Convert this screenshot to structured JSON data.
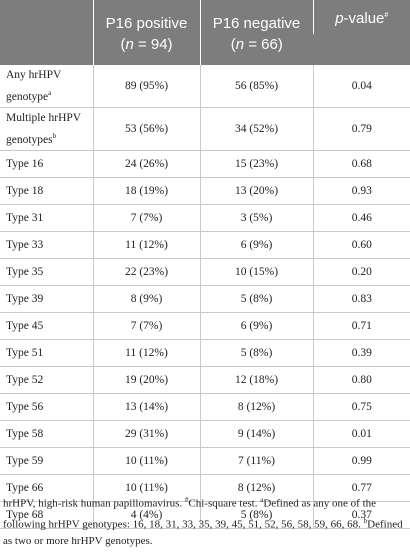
{
  "table": {
    "headers": {
      "col2": "P16 positive",
      "col3": "P16 negative",
      "col4_p": "p",
      "col4_rest": "-value",
      "col4_sup": "#",
      "n2_prefix": "(",
      "n2_n": "n",
      "n2_rest": " = 94)",
      "n3_prefix": "(",
      "n3_n": "n",
      "n3_rest": " = 66)"
    },
    "rows": [
      {
        "label_line1": "Any hrHPV",
        "label_line2": "genotype",
        "sup": "a",
        "pos": "89 (95%)",
        "neg": "56 (85%)",
        "p": "0.04"
      },
      {
        "label_line1": "Multiple hrHPV",
        "label_line2": "genotypes",
        "sup": "b",
        "pos": "53 (56%)",
        "neg": "34 (52%)",
        "p": "0.79"
      },
      {
        "label": "Type 16",
        "pos": "24 (26%)",
        "neg": "15 (23%)",
        "p": "0.68"
      },
      {
        "label": "Type 18",
        "pos": "18 (19%)",
        "neg": "13 (20%)",
        "p": "0.93"
      },
      {
        "label": "Type 31",
        "pos": "7 (7%)",
        "neg": "3 (5%)",
        "p": "0.46"
      },
      {
        "label": "Type 33",
        "pos": "11 (12%)",
        "neg": "6 (9%)",
        "p": "0.60"
      },
      {
        "label": "Type 35",
        "pos": "22 (23%)",
        "neg": "10 (15%)",
        "p": "0.20"
      },
      {
        "label": "Type 39",
        "pos": "8 (9%)",
        "neg": "5 (8%)",
        "p": "0.83"
      },
      {
        "label": "Type 45",
        "pos": "7 (7%)",
        "neg": "6 (9%)",
        "p": "0.71"
      },
      {
        "label": "Type 51",
        "pos": "11 (12%)",
        "neg": "5 (8%)",
        "p": "0.39"
      },
      {
        "label": "Type 52",
        "pos": "19 (20%)",
        "neg": "12 (18%)",
        "p": "0.80"
      },
      {
        "label": "Type 56",
        "pos": "13 (14%)",
        "neg": "8 (12%)",
        "p": "0.75"
      },
      {
        "label": "Type 58",
        "pos": "29 (31%)",
        "neg": "9 (14%)",
        "p": "0.01"
      },
      {
        "label": "Type 59",
        "pos": "10 (11%)",
        "neg": "7 (11%)",
        "p": "0.99"
      },
      {
        "label": "Type 66",
        "pos": "10 (11%)",
        "neg": "8 (12%)",
        "p": "0.77"
      },
      {
        "label": "Type 68",
        "pos": "4 (4%)",
        "neg": "5 (8%)",
        "p": "0.37"
      }
    ]
  },
  "footnote": {
    "part1": "hrHPV, high-risk human papillomavirus. ",
    "hash": "#",
    "part2": "Chi-square test. ",
    "a": "a",
    "part3": "Defined as any one of the following hrHPV genotypes: 16, 18, 31, 33, 35, 39, 45, 51, 52, 56, 58, 59, 66, 68. ",
    "b": "b",
    "part4": "Defined as two or more hrHPV genotypes."
  }
}
